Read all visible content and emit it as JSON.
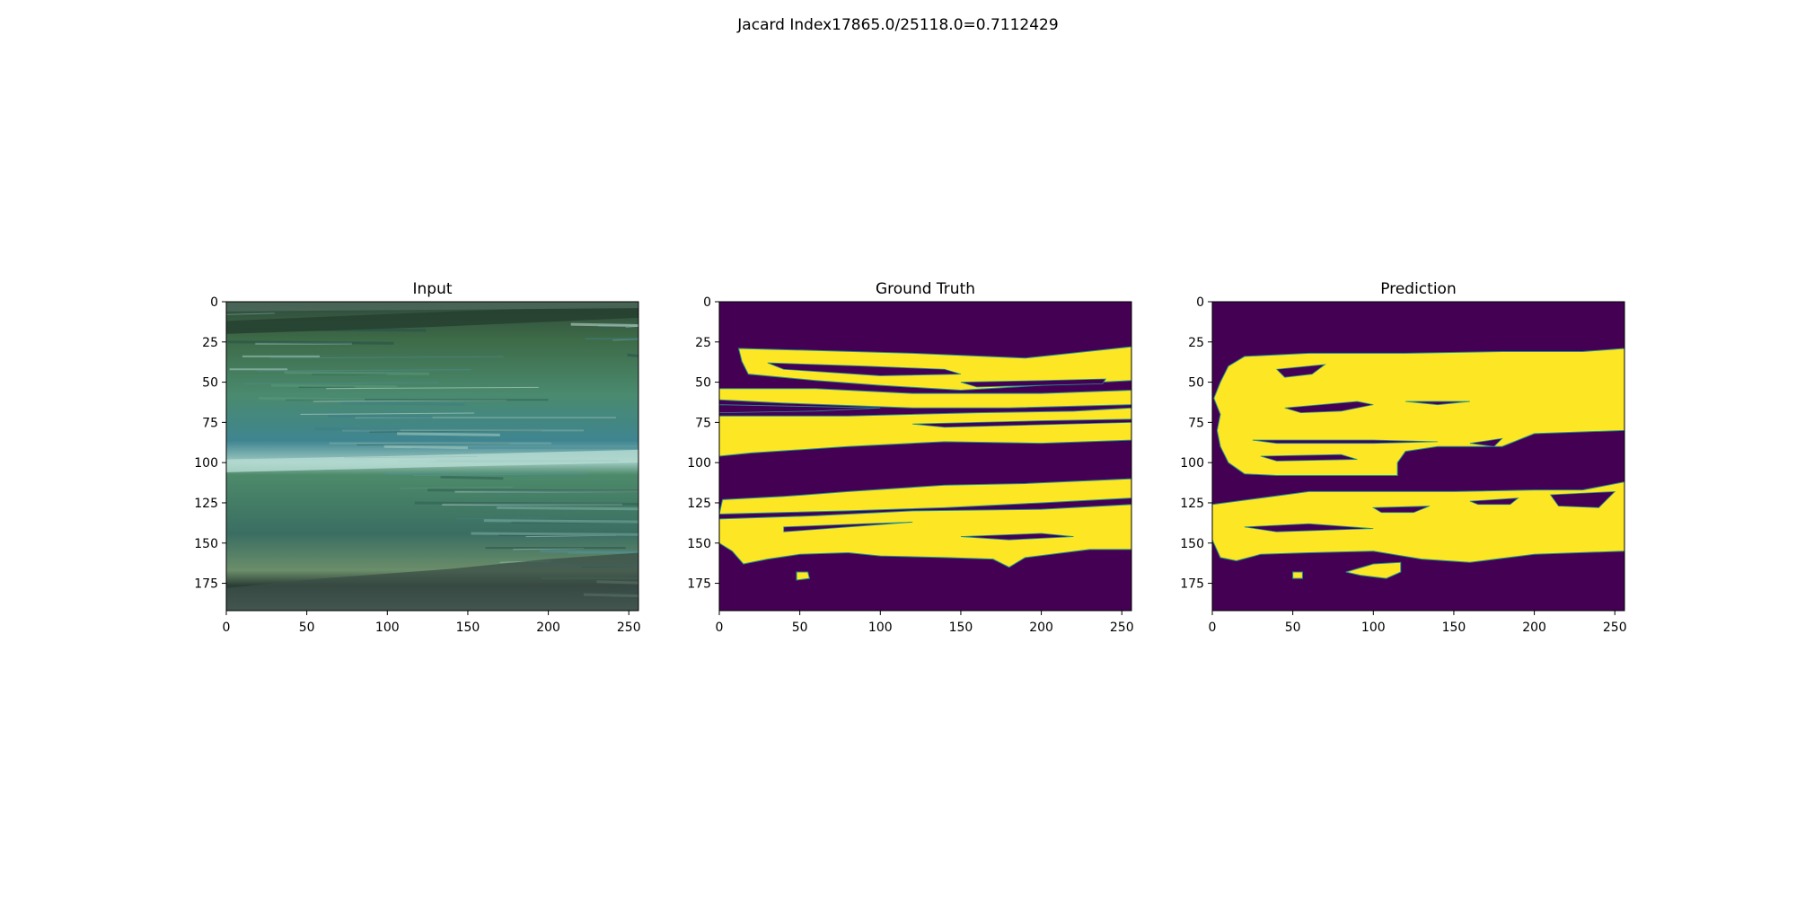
{
  "suptitle": "Jacard Index17865.0/25118.0=0.7112429",
  "colors": {
    "background": "#440154",
    "foreground": "#fde725",
    "edge": "#21918c",
    "axis": "#000000"
  },
  "chart_data": [
    {
      "type": "heatmap",
      "title": "Input",
      "image": "rgb-photo-of-plant-leaves",
      "xlim": [
        0,
        256
      ],
      "ylim": [
        192,
        0
      ],
      "xticks": [
        0,
        50,
        100,
        150,
        200,
        250
      ],
      "yticks": [
        0,
        25,
        50,
        75,
        100,
        125,
        150,
        175
      ]
    },
    {
      "type": "heatmap",
      "title": "Ground Truth",
      "image": "binary-mask",
      "xlim": [
        0,
        256
      ],
      "ylim": [
        192,
        0
      ],
      "xticks": [
        0,
        50,
        100,
        150,
        200,
        250
      ],
      "yticks": [
        0,
        25,
        50,
        75,
        100,
        125,
        150,
        175
      ],
      "mask_regions": [
        [
          [
            12,
            29
          ],
          [
            120,
            32
          ],
          [
            190,
            35
          ],
          [
            228,
            31
          ],
          [
            256,
            28
          ],
          [
            256,
            49
          ],
          [
            200,
            52
          ],
          [
            150,
            55
          ],
          [
            100,
            52
          ],
          [
            60,
            49
          ],
          [
            18,
            45
          ],
          [
            14,
            37
          ]
        ],
        [
          [
            0,
            54
          ],
          [
            60,
            54
          ],
          [
            120,
            57
          ],
          [
            200,
            57
          ],
          [
            256,
            55
          ],
          [
            256,
            64
          ],
          [
            180,
            66
          ],
          [
            120,
            66
          ],
          [
            40,
            63
          ],
          [
            0,
            61
          ]
        ],
        [
          [
            0,
            71
          ],
          [
            80,
            71
          ],
          [
            160,
            69
          ],
          [
            220,
            68
          ],
          [
            256,
            66
          ],
          [
            256,
            86
          ],
          [
            200,
            88
          ],
          [
            140,
            87
          ],
          [
            80,
            90
          ],
          [
            20,
            94
          ],
          [
            0,
            96
          ]
        ],
        [
          [
            80,
            118
          ],
          [
            140,
            114
          ],
          [
            190,
            113
          ],
          [
            256,
            110
          ],
          [
            256,
            122
          ],
          [
            200,
            125
          ],
          [
            140,
            128
          ],
          [
            80,
            130
          ],
          [
            0,
            132
          ],
          [
            2,
            123
          ],
          [
            40,
            121
          ]
        ],
        [
          [
            0,
            135
          ],
          [
            60,
            133
          ],
          [
            120,
            130
          ],
          [
            200,
            129
          ],
          [
            256,
            126
          ],
          [
            256,
            154
          ],
          [
            230,
            154
          ],
          [
            190,
            159
          ],
          [
            180,
            165
          ],
          [
            170,
            160
          ],
          [
            140,
            159
          ],
          [
            100,
            158
          ],
          [
            80,
            156
          ],
          [
            50,
            157
          ],
          [
            30,
            160
          ],
          [
            15,
            163
          ],
          [
            8,
            155
          ],
          [
            0,
            150
          ]
        ],
        [
          [
            48,
            168
          ],
          [
            55,
            168
          ],
          [
            56,
            172
          ],
          [
            48,
            173
          ]
        ]
      ],
      "mask_holes": [
        [
          [
            30,
            38
          ],
          [
            90,
            40
          ],
          [
            140,
            42
          ],
          [
            150,
            45
          ],
          [
            100,
            46
          ],
          [
            40,
            42
          ]
        ],
        [
          [
            150,
            50
          ],
          [
            200,
            49
          ],
          [
            240,
            48
          ],
          [
            238,
            51
          ],
          [
            160,
            53
          ]
        ],
        [
          [
            0,
            64
          ],
          [
            50,
            65
          ],
          [
            100,
            66
          ],
          [
            60,
            68
          ],
          [
            0,
            69
          ]
        ],
        [
          [
            120,
            76
          ],
          [
            200,
            74
          ],
          [
            256,
            73
          ],
          [
            256,
            75
          ],
          [
            140,
            78
          ]
        ],
        [
          [
            40,
            140
          ],
          [
            90,
            138
          ],
          [
            120,
            137
          ],
          [
            80,
            140
          ],
          [
            40,
            143
          ]
        ],
        [
          [
            150,
            146
          ],
          [
            200,
            144
          ],
          [
            220,
            146
          ],
          [
            180,
            148
          ]
        ]
      ]
    },
    {
      "type": "heatmap",
      "title": "Prediction",
      "image": "binary-mask",
      "xlim": [
        0,
        256
      ],
      "ylim": [
        192,
        0
      ],
      "xticks": [
        0,
        50,
        100,
        150,
        200,
        250
      ],
      "yticks": [
        0,
        25,
        50,
        75,
        100,
        125,
        150,
        175
      ],
      "mask_regions": [
        [
          [
            20,
            34
          ],
          [
            60,
            32
          ],
          [
            120,
            32
          ],
          [
            180,
            31
          ],
          [
            230,
            31
          ],
          [
            256,
            29
          ],
          [
            256,
            80
          ],
          [
            200,
            82
          ],
          [
            180,
            90
          ],
          [
            140,
            90
          ],
          [
            120,
            93
          ],
          [
            115,
            100
          ],
          [
            115,
            108
          ],
          [
            90,
            108
          ],
          [
            60,
            108
          ],
          [
            40,
            108
          ],
          [
            20,
            107
          ],
          [
            10,
            100
          ],
          [
            5,
            90
          ],
          [
            3,
            80
          ],
          [
            5,
            70
          ],
          [
            1,
            60
          ],
          [
            5,
            50
          ],
          [
            10,
            40
          ]
        ],
        [
          [
            0,
            126
          ],
          [
            30,
            122
          ],
          [
            60,
            118
          ],
          [
            100,
            118
          ],
          [
            150,
            118
          ],
          [
            200,
            117
          ],
          [
            230,
            117
          ],
          [
            256,
            112
          ],
          [
            256,
            155
          ],
          [
            200,
            157
          ],
          [
            160,
            162
          ],
          [
            130,
            160
          ],
          [
            100,
            155
          ],
          [
            60,
            156
          ],
          [
            30,
            157
          ],
          [
            15,
            161
          ],
          [
            5,
            159
          ],
          [
            0,
            148
          ]
        ],
        [
          [
            50,
            168
          ],
          [
            56,
            168
          ],
          [
            56,
            172
          ],
          [
            50,
            172
          ]
        ],
        [
          [
            83,
            168
          ],
          [
            100,
            163
          ],
          [
            117,
            162
          ],
          [
            117,
            168
          ],
          [
            108,
            172
          ],
          [
            92,
            170
          ]
        ]
      ],
      "mask_holes": [
        [
          [
            40,
            42
          ],
          [
            70,
            39
          ],
          [
            62,
            45
          ],
          [
            45,
            47
          ]
        ],
        [
          [
            45,
            66
          ],
          [
            90,
            62
          ],
          [
            100,
            64
          ],
          [
            80,
            68
          ],
          [
            55,
            69
          ]
        ],
        [
          [
            120,
            62
          ],
          [
            160,
            62
          ],
          [
            140,
            64
          ]
        ],
        [
          [
            25,
            86
          ],
          [
            100,
            86
          ],
          [
            140,
            87
          ],
          [
            100,
            88
          ],
          [
            40,
            88
          ]
        ],
        [
          [
            160,
            88
          ],
          [
            180,
            85
          ],
          [
            175,
            90
          ]
        ],
        [
          [
            30,
            96
          ],
          [
            80,
            95
          ],
          [
            90,
            98
          ],
          [
            40,
            99
          ]
        ],
        [
          [
            210,
            120
          ],
          [
            250,
            118
          ],
          [
            240,
            128
          ],
          [
            215,
            127
          ]
        ],
        [
          [
            100,
            128
          ],
          [
            135,
            127
          ],
          [
            125,
            131
          ],
          [
            105,
            131
          ]
        ],
        [
          [
            160,
            124
          ],
          [
            190,
            122
          ],
          [
            185,
            126
          ],
          [
            165,
            126
          ]
        ],
        [
          [
            20,
            140
          ],
          [
            60,
            138
          ],
          [
            100,
            141
          ],
          [
            40,
            143
          ]
        ]
      ]
    }
  ]
}
